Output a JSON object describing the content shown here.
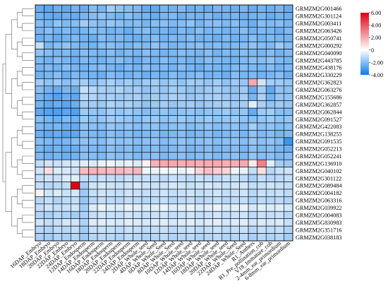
{
  "chart_data": {
    "type": "heatmap",
    "title": "",
    "xlabel": "",
    "ylabel": "",
    "rows": [
      "GRMZM2G001466",
      "GRMZM2G301124",
      "GRMZM2G003411",
      "GRMZM2G063426",
      "GRMZM2G050741",
      "GRMZM2G000292",
      "GRMZM2G040090",
      "GRMZM2G443785",
      "GRMZM2G438176",
      "GRMZM2G330229",
      "GRMZM2G362823",
      "GRMZM2G063276",
      "GRMZM2G155686",
      "GRMZM2G362857",
      "GRMZM2G062844",
      "GRMZM2G091527",
      "GRMZM2G422083",
      "GRMZM2G138255",
      "GRMZM2G091535",
      "GRMZM2G052213",
      "GRMZM2G052241",
      "GRMZM2G136910",
      "GRMZM2G040102",
      "GRMZM2G301122",
      "GRMZM2G089484",
      "GRMZM2G004182",
      "GRMZM2G063316",
      "GRMZM2G039922",
      "GRMZM2G004083",
      "GRMZM5G830983",
      "GRMZM2G351716",
      "GRMZM2G038183"
    ],
    "columns": [
      "16DAP_Embryo",
      "18DAP_Embryo",
      "20DAP_Embryo",
      "22DAP_Embryo",
      "24DAP_Embryo",
      "12DAP_Endosperm",
      "14DAP_Endosperm",
      "16DAP_Endosperm",
      "18DAP_Endosperm",
      "20DAP_Endosperm",
      "22DAP_Endosperm",
      "24DAP_Endosperm",
      "2DAP_Whole_seed",
      "4DAP_Whole_Seed",
      "6DAP_Whole_Seed",
      "8DAP_Whole_Seed",
      "10DAP_Whole_seed",
      "12DAP_Whole_seed",
      "14DAP_Whole_seed",
      "16DAP_Whole_seed",
      "18DAP_Whole_seed",
      "20DAP_Whole_seed",
      "22DAP_Whole_Seed",
      "24DAP_Whole_Seed",
      "R1_Anthers",
      "R1_Pre_pollination_cob",
      "V18_Immature_cob",
      "2-4mm_ear_primordium",
      "6-8mm_ear_primordium"
    ],
    "values": [
      [
        -2.5,
        -2.7,
        -2.4,
        -2.6,
        -2.3,
        -2.5,
        -2.0,
        -2.2,
        -1.5,
        -1.8,
        -2.0,
        -2.1,
        -2.5,
        -2.6,
        -2.2,
        -2.3,
        -2.1,
        -2.4,
        -2.3,
        -2.5,
        -2.2,
        -2.3,
        -2.4,
        -2.2,
        -2.5,
        -2.3,
        -2.4,
        -2.2,
        -2.5
      ],
      [
        -2.3,
        -2.5,
        -2.6,
        -2.4,
        -2.5,
        -2.2,
        -2.0,
        -1.8,
        -2.1,
        -2.3,
        -2.0,
        -2.2,
        -2.3,
        -2.5,
        -2.2,
        -2.1,
        -2.4,
        -2.2,
        -2.3,
        -2.1,
        -2.4,
        -2.3,
        -2.2,
        -2.4,
        -2.3,
        -2.2,
        -2.5,
        -2.3,
        -2.4
      ],
      [
        -2.0,
        -2.2,
        -1.8,
        -2.1,
        -2.0,
        -1.5,
        -1.8,
        -2.0,
        -1.7,
        -1.9,
        -2.1,
        -2.0,
        -2.2,
        -2.0,
        -1.9,
        -2.1,
        -2.0,
        -1.8,
        -2.2,
        -2.0,
        -1.9,
        -2.1,
        -2.0,
        -2.2,
        -2.4,
        -2.0,
        -2.1,
        -2.0,
        -2.2
      ],
      [
        -2.2,
        -2.0,
        -2.3,
        -2.1,
        -2.4,
        -2.2,
        -2.0,
        -2.1,
        -2.3,
        -2.2,
        -2.5,
        -2.1,
        -2.0,
        -2.3,
        -2.2,
        -2.4,
        -2.1,
        -2.3,
        -2.0,
        -2.2,
        -2.1,
        -2.3,
        -2.2,
        -2.0,
        -2.3,
        -2.1,
        -2.2,
        -2.4,
        -2.1
      ],
      [
        -2.4,
        -2.2,
        -2.5,
        -2.3,
        -2.1,
        -2.3,
        -2.4,
        -2.0,
        -2.2,
        -2.1,
        -2.3,
        -2.4,
        -2.2,
        -2.0,
        -2.3,
        -2.1,
        -2.2,
        -2.0,
        -2.3,
        -2.2,
        -2.4,
        -2.1,
        -2.3,
        -2.2,
        -2.0,
        -2.3,
        -2.1,
        -2.2,
        -2.3
      ],
      [
        -1.0,
        -2.2,
        -2.0,
        -1.8,
        -2.1,
        -2.2,
        -2.3,
        -2.0,
        -1.9,
        -2.1,
        -2.2,
        -2.0,
        -2.1,
        -1.8,
        -2.0,
        -2.2,
        -2.1,
        -2.0,
        -1.9,
        -2.1,
        -2.0,
        -2.2,
        -2.1,
        -2.0,
        -1.8,
        -2.0,
        -2.1,
        -1.6,
        -2.0
      ],
      [
        -1.8,
        -2.0,
        -2.2,
        -2.1,
        -2.3,
        -2.0,
        -2.1,
        -2.2,
        -2.0,
        -2.3,
        -2.1,
        -2.2,
        -2.0,
        -2.1,
        -2.3,
        -2.2,
        -2.0,
        -2.1,
        -2.2,
        -2.0,
        -2.3,
        -2.1,
        -2.2,
        -2.0,
        -2.1,
        -2.2,
        -2.0,
        -2.3,
        -2.1
      ],
      [
        -2.1,
        -2.3,
        -2.0,
        -2.2,
        -2.4,
        -2.1,
        -2.2,
        -2.3,
        -2.1,
        -2.0,
        -2.2,
        -2.4,
        -2.1,
        -2.3,
        -2.0,
        -2.2,
        -2.1,
        -2.3,
        -2.2,
        -2.0,
        -2.1,
        -2.2,
        -2.3,
        -2.1,
        -1.9,
        -2.0,
        -1.8,
        -2.1,
        -2.2
      ],
      [
        -2.2,
        -2.1,
        -2.3,
        -2.0,
        -2.2,
        -2.3,
        -2.1,
        -2.0,
        -2.2,
        -2.4,
        -2.1,
        -2.3,
        -2.0,
        -2.2,
        -2.1,
        -2.3,
        -2.0,
        -2.2,
        -2.4,
        -2.1,
        -2.2,
        -2.3,
        -2.1,
        -2.0,
        -2.1,
        -2.2,
        -2.0,
        -2.3,
        -2.1
      ],
      [
        -2.3,
        -2.2,
        -2.0,
        -2.4,
        -2.1,
        -2.2,
        -2.3,
        -2.4,
        -2.0,
        -2.2,
        -2.3,
        -2.1,
        -2.4,
        -2.2,
        -2.3,
        -2.0,
        -2.2,
        -2.1,
        -2.0,
        -2.3,
        -2.2,
        -2.4,
        -2.0,
        -2.2,
        -2.1,
        -2.3,
        -2.2,
        -2.0,
        -2.4
      ],
      [
        -1.5,
        -1.8,
        -1.6,
        -1.9,
        -1.7,
        -1.5,
        -1.8,
        -1.6,
        -1.4,
        -1.7,
        -1.5,
        -1.8,
        -1.6,
        -1.5,
        -1.7,
        -1.6,
        -1.8,
        -1.5,
        -1.6,
        -1.7,
        -1.5,
        -1.8,
        -1.6,
        -1.7,
        2.0,
        -0.8,
        -1.5,
        -1.6,
        -1.7
      ],
      [
        -2.0,
        -2.3,
        -2.5,
        -2.2,
        -2.4,
        -1.0,
        -1.2,
        -1.4,
        -1.5,
        -1.3,
        -1.6,
        -1.5,
        -1.8,
        -1.6,
        -1.7,
        -1.5,
        -1.6,
        -1.8,
        -1.7,
        -1.6,
        -1.5,
        -1.7,
        -1.8,
        -1.6,
        -2.5,
        -1.5,
        -2.6,
        -1.8,
        -1.9
      ],
      [
        -2.2,
        -2.5,
        -2.8,
        -2.4,
        -2.6,
        -1.2,
        -1.3,
        -1.5,
        -1.4,
        -1.6,
        -1.5,
        -1.4,
        -1.7,
        -1.5,
        -1.6,
        -1.4,
        -1.5,
        -1.7,
        -1.6,
        -1.5,
        -1.4,
        -1.6,
        -1.7,
        -1.5,
        -2.2,
        -1.4,
        -2.3,
        -1.7,
        -1.8
      ],
      [
        -2.3,
        -2.6,
        -2.5,
        -2.7,
        -2.4,
        -1.4,
        -1.5,
        -1.6,
        -1.3,
        -1.5,
        -1.4,
        -1.6,
        -1.8,
        -1.6,
        -1.5,
        -1.7,
        -1.6,
        -1.5,
        -1.7,
        -1.6,
        -1.5,
        -1.4,
        -1.6,
        -1.5,
        -0.5,
        -1.4,
        -1.8,
        -1.6,
        -1.7
      ],
      [
        -2.6,
        -2.8,
        -2.9,
        -2.7,
        -2.8,
        -1.6,
        -1.7,
        -1.8,
        -1.5,
        -1.7,
        -1.6,
        -1.8,
        -2.0,
        -1.8,
        -1.7,
        -1.9,
        -1.8,
        -1.7,
        -1.9,
        -1.8,
        -1.7,
        -1.6,
        -1.8,
        -1.7,
        -2.5,
        -1.6,
        -1.5,
        -1.9,
        -2.0
      ],
      [
        -2.0,
        -2.2,
        -2.4,
        -2.1,
        -2.3,
        -1.6,
        -1.8,
        -1.7,
        -1.5,
        -1.6,
        -1.7,
        -1.9,
        -1.7,
        -1.6,
        -1.8,
        -1.7,
        -1.6,
        -1.8,
        -1.7,
        -1.6,
        -1.8,
        -1.7,
        -1.6,
        -1.8,
        -1.9,
        -1.7,
        -1.6,
        -1.8,
        -1.7
      ],
      [
        -2.1,
        -2.3,
        -2.2,
        -2.4,
        -2.5,
        -1.8,
        -1.9,
        -2.0,
        -1.7,
        -1.9,
        -1.8,
        -2.0,
        -1.9,
        -1.8,
        -2.0,
        -1.9,
        -1.8,
        -2.0,
        -1.9,
        -1.8,
        -2.0,
        -1.9,
        -1.8,
        -2.0,
        -1.5,
        -1.9,
        -1.8,
        -2.0,
        -1.9
      ],
      [
        -2.4,
        -2.6,
        -2.5,
        -2.7,
        -2.6,
        -2.0,
        -2.1,
        -2.2,
        -1.9,
        -2.1,
        -2.0,
        -2.2,
        -2.1,
        -2.0,
        -2.2,
        -2.1,
        -2.0,
        -2.2,
        -2.1,
        -2.0,
        -2.2,
        -2.1,
        -2.0,
        -2.2,
        -1.8,
        -2.1,
        -2.0,
        -2.2,
        -2.1
      ],
      [
        -2.0,
        -2.1,
        -2.3,
        -2.2,
        -2.0,
        -1.8,
        -1.9,
        -2.0,
        -1.7,
        -1.9,
        -1.8,
        -2.0,
        -1.9,
        -1.8,
        -2.0,
        -1.9,
        -1.8,
        -2.0,
        -1.9,
        -1.8,
        -2.0,
        -1.9,
        -1.8,
        -2.0,
        -1.7,
        -1.9,
        -1.8,
        -2.0,
        -3.2
      ],
      [
        -2.2,
        -2.4,
        -2.3,
        -2.5,
        -2.4,
        -2.0,
        -2.1,
        -2.2,
        -1.9,
        -2.1,
        -2.0,
        -2.2,
        -2.1,
        -2.0,
        -2.2,
        -2.1,
        -2.0,
        -2.2,
        -2.1,
        -2.0,
        -2.2,
        -2.1,
        -2.0,
        -2.2,
        -1.9,
        -2.1,
        -2.0,
        -2.2,
        -2.4
      ],
      [
        -2.1,
        -2.3,
        -2.2,
        -2.4,
        -2.3,
        -1.9,
        -2.0,
        -2.1,
        -1.8,
        -2.0,
        -1.9,
        -2.1,
        -2.0,
        -1.9,
        -2.1,
        -2.0,
        -1.9,
        -2.1,
        -2.0,
        -1.9,
        -2.1,
        -2.0,
        -1.9,
        -2.1,
        -1.8,
        -2.0,
        -1.9,
        -2.1,
        -2.0
      ],
      [
        -1.0,
        -0.8,
        -0.9,
        -0.8,
        -0.7,
        -0.5,
        -0.6,
        -0.4,
        -0.3,
        -0.5,
        -0.4,
        -0.6,
        0.3,
        1.8,
        2.0,
        2.0,
        1.9,
        2.0,
        1.9,
        2.0,
        2.0,
        1.9,
        1.9,
        2.0,
        0.5,
        3.0,
        -0.5,
        -1.5,
        -1.6
      ],
      [
        -0.8,
        0.8,
        -0.6,
        -0.7,
        -0.8,
        1.6,
        1.8,
        1.7,
        1.6,
        1.7,
        1.5,
        1.7,
        -0.3,
        -0.4,
        -0.2,
        -0.3,
        -0.4,
        -0.2,
        1.0,
        1.5,
        1.2,
        1.0,
        -0.3,
        -0.4,
        -1.0,
        0.8,
        -1.2,
        -0.9,
        -0.8
      ],
      [
        -1.0,
        -0.8,
        -0.9,
        -0.6,
        -0.5,
        -1.0,
        -1.1,
        -0.9,
        -1.0,
        -1.1,
        -0.9,
        -1.0,
        -0.9,
        -1.0,
        -1.1,
        -0.9,
        -1.0,
        -1.1,
        -0.9,
        -1.0,
        -1.1,
        -0.9,
        -1.0,
        -1.1,
        -1.4,
        -1.0,
        -1.2,
        -1.1,
        -1.0
      ],
      [
        -1.0,
        -1.2,
        -1.1,
        -1.0,
        6.0,
        -1.5,
        -0.8,
        -0.7,
        -0.8,
        -0.9,
        -0.8,
        -0.7,
        -0.8,
        -0.9,
        -0.8,
        -0.7,
        -0.8,
        -0.9,
        -0.8,
        -0.7,
        -0.8,
        -0.9,
        -0.8,
        -0.7,
        -1.0,
        -0.9,
        -0.8,
        -0.9,
        -1.0
      ],
      [
        0.3,
        -0.8,
        -0.6,
        -0.9,
        -0.7,
        -1.6,
        -1.0,
        -0.8,
        -0.9,
        -1.0,
        -0.8,
        -0.9,
        -1.0,
        -0.9,
        -0.8,
        -1.0,
        -0.9,
        -0.8,
        -1.0,
        -0.9,
        -0.8,
        -1.0,
        -0.9,
        -0.8,
        -1.2,
        -0.9,
        -1.0,
        -0.9,
        -1.1
      ],
      [
        -1.2,
        -1.0,
        -1.3,
        -1.1,
        -1.0,
        -1.7,
        -1.2,
        -1.0,
        -1.1,
        -1.2,
        -1.0,
        -1.1,
        -1.2,
        -1.1,
        -1.0,
        -1.2,
        -1.1,
        -1.0,
        -1.2,
        -1.1,
        -1.0,
        -1.2,
        -1.1,
        -1.0,
        -1.3,
        -1.1,
        -1.2,
        -1.1,
        -1.3
      ],
      [
        -1.0,
        -0.8,
        -1.0,
        -0.9,
        -0.8,
        -1.5,
        -0.6,
        -0.4,
        -0.5,
        -0.6,
        -0.4,
        -0.5,
        -0.6,
        -0.5,
        -0.4,
        -0.6,
        -0.5,
        -0.4,
        -0.6,
        -0.5,
        -0.4,
        -0.6,
        -0.5,
        -0.4,
        -0.7,
        -0.5,
        -0.6,
        -0.5,
        -0.7
      ],
      [
        -1.3,
        -1.4,
        -1.2,
        -1.3,
        -1.5,
        -1.4,
        -1.0,
        -0.8,
        -0.9,
        -1.0,
        -0.8,
        -0.9,
        -1.0,
        -0.9,
        -0.8,
        -1.0,
        -0.9,
        -0.8,
        -1.0,
        -0.9,
        -0.8,
        -1.0,
        -0.9,
        -0.8,
        -1.1,
        -0.9,
        -1.0,
        -0.9,
        -1.2
      ],
      [
        -0.8,
        -1.0,
        -0.9,
        -0.7,
        -0.8,
        -1.3,
        -0.6,
        -0.5,
        -0.6,
        -0.7,
        -0.5,
        -0.6,
        -0.7,
        -0.6,
        -0.5,
        -0.7,
        -0.6,
        -0.5,
        -0.7,
        -0.6,
        -0.5,
        -0.7,
        -0.6,
        -0.5,
        -0.8,
        -0.6,
        -0.7,
        -0.6,
        -0.9
      ],
      [
        -1.2,
        -1.3,
        -1.1,
        -1.2,
        -1.0,
        -1.5,
        -1.0,
        -0.9,
        -1.0,
        -1.1,
        -0.9,
        -1.0,
        -1.1,
        -1.0,
        -0.9,
        -1.1,
        -1.0,
        -0.9,
        -1.1,
        -1.0,
        -0.9,
        -1.1,
        -1.0,
        -0.9,
        -1.2,
        -1.0,
        -1.1,
        -1.0,
        -1.3
      ],
      [
        -1.4,
        -1.5,
        -1.3,
        -1.4,
        -1.2,
        -1.6,
        -1.2,
        -1.1,
        -1.2,
        -1.3,
        -1.1,
        -1.2,
        -1.3,
        -1.2,
        -1.1,
        -1.3,
        -1.2,
        -1.1,
        -1.3,
        -1.2,
        -1.1,
        -1.3,
        -1.2,
        -1.1,
        -1.4,
        -1.2,
        -1.3,
        -1.2,
        -1.5
      ]
    ],
    "color_scale": {
      "min": -4,
      "mid": 0,
      "max": 6,
      "low_color": "#0a7ae8",
      "mid_color": "#ffffff",
      "high_color": "#e00015"
    },
    "legend_ticks": [
      "6.00",
      "4.00",
      "2.00",
      "0",
      "-2.00",
      "-4.00"
    ],
    "legend_tick_values": [
      6,
      4,
      2,
      0,
      -2,
      -4
    ],
    "legend_placement": "top-right",
    "dendrogram": "left"
  }
}
